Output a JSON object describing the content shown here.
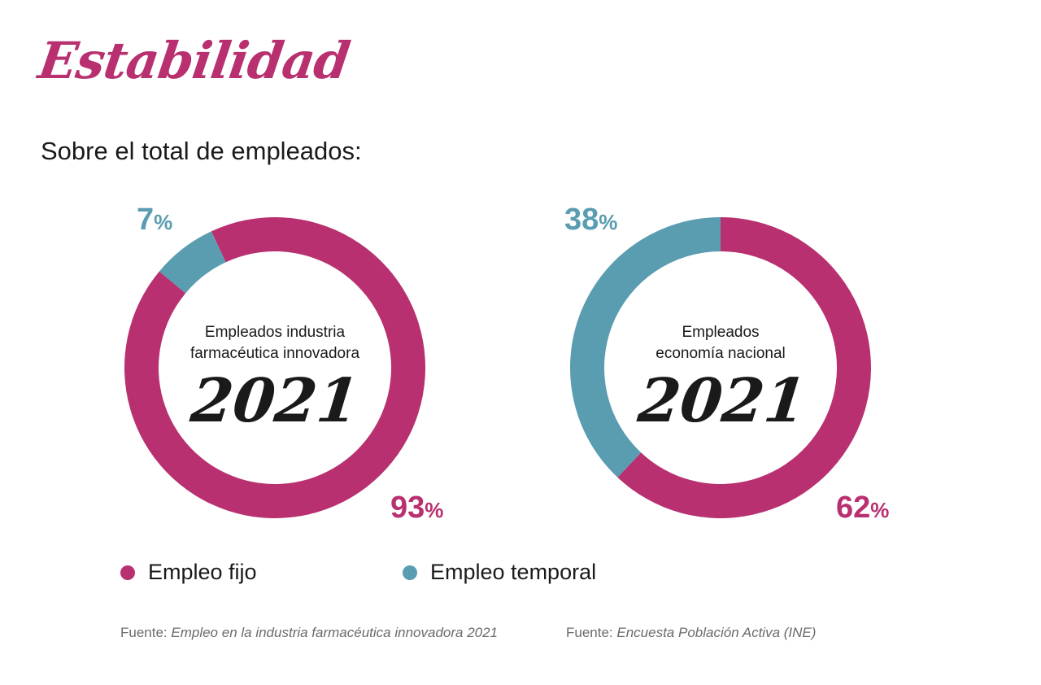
{
  "title": "Estabilidad",
  "subtitle": "Sobre el total de empleados:",
  "colors": {
    "fijo": "#b8306f",
    "temporal": "#5a9db1",
    "text": "#1a1a1a"
  },
  "chart_data": [
    {
      "type": "pie",
      "center_label_line1": "Empleados industria",
      "center_label_line2": "farmacéutica innovadora",
      "center_year": "2021",
      "labels": [
        "Empleo fijo",
        "Empleo temporal"
      ],
      "values": [
        93,
        7
      ],
      "value_text": [
        "93",
        "7"
      ]
    },
    {
      "type": "pie",
      "center_label_line1": "Empleados",
      "center_label_line2": "economía nacional",
      "center_year": "2021",
      "labels": [
        "Empleo fijo",
        "Empleo temporal"
      ],
      "values": [
        62,
        38
      ],
      "value_text": [
        "62",
        "38"
      ]
    }
  ],
  "pct_sign": "%",
  "legend": [
    {
      "label": "Empleo fijo"
    },
    {
      "label": "Empleo temporal"
    }
  ],
  "sources": [
    {
      "prefix": "Fuente: ",
      "text": "Empleo en la industria farmacéutica innovadora 2021"
    },
    {
      "prefix": "Fuente: ",
      "text": "Encuesta Población Activa (INE)"
    }
  ]
}
